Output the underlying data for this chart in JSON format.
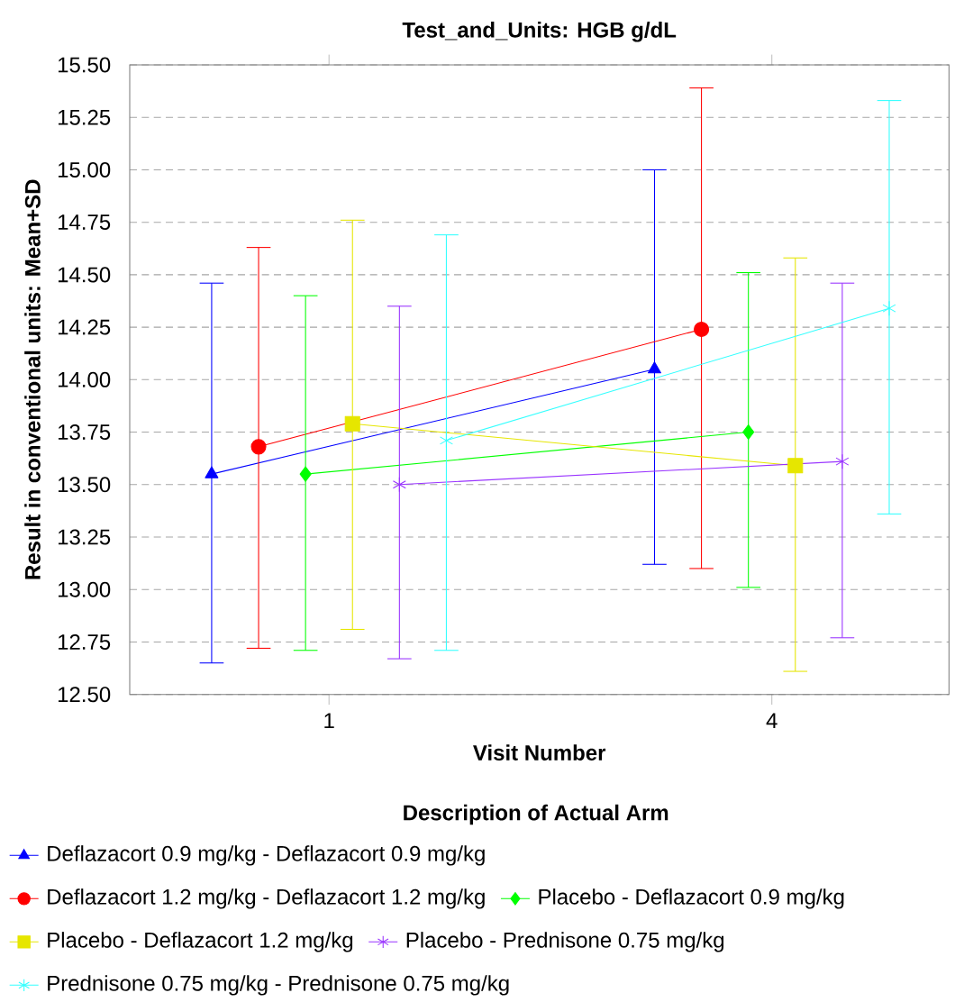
{
  "chart_data": {
    "type": "line",
    "title": "Test_and_Units: HGB g/dL",
    "xlabel": "Visit Number",
    "ylabel": "Result in conventional units: Mean+SD",
    "legend_title": "Description of Actual Arm",
    "categories": [
      "1",
      "4"
    ],
    "ylim": [
      12.5,
      15.5
    ],
    "yticks": [
      {
        "value": 12.5,
        "label": "12.50"
      },
      {
        "value": 12.75,
        "label": "12.75"
      },
      {
        "value": 13.0,
        "label": "13.00"
      },
      {
        "value": 13.25,
        "label": "13.25"
      },
      {
        "value": 13.5,
        "label": "13.50"
      },
      {
        "value": 13.75,
        "label": "13.75"
      },
      {
        "value": 14.0,
        "label": "14.00"
      },
      {
        "value": 14.25,
        "label": "14.25"
      },
      {
        "value": 14.5,
        "label": "14.50"
      },
      {
        "value": 14.75,
        "label": "14.75"
      },
      {
        "value": 15.0,
        "label": "15.00"
      },
      {
        "value": 15.25,
        "label": "15.25"
      },
      {
        "value": 15.5,
        "label": "15.50"
      }
    ],
    "grid": "y",
    "legend": "bottom",
    "line_style": "solid",
    "series": [
      {
        "name": "Deflazacort 0.9 mg/kg - Deflazacort 0.9 mg/kg",
        "color": "#0000ff",
        "marker": "triangle",
        "values": [
          13.55,
          14.05
        ],
        "errors": [
          [
            12.65,
            14.46
          ],
          [
            13.12,
            15.0
          ]
        ]
      },
      {
        "name": "Deflazacort 1.2 mg/kg - Deflazacort 1.2 mg/kg",
        "color": "#ff0000",
        "marker": "circle",
        "values": [
          13.68,
          14.24
        ],
        "errors": [
          [
            12.72,
            14.63
          ],
          [
            13.1,
            15.39
          ]
        ]
      },
      {
        "name": "Placebo - Deflazacort 0.9 mg/kg",
        "color": "#00ff00",
        "marker": "diamond",
        "values": [
          13.55,
          13.75
        ],
        "errors": [
          [
            12.71,
            14.4
          ],
          [
            13.01,
            14.51
          ]
        ]
      },
      {
        "name": "Placebo - Deflazacort 1.2 mg/kg",
        "color": "#e6e600",
        "marker": "square",
        "values": [
          13.79,
          13.59
        ],
        "errors": [
          [
            12.81,
            14.76
          ],
          [
            12.61,
            14.58
          ]
        ]
      },
      {
        "name": "Placebo - Prednisone 0.75 mg/kg",
        "color": "#9933ff",
        "marker": "cross",
        "values": [
          13.5,
          13.61
        ],
        "errors": [
          [
            12.67,
            14.35
          ],
          [
            12.77,
            14.46
          ]
        ]
      },
      {
        "name": "Prednisone 0.75 mg/kg - Prednisone 0.75 mg/kg",
        "color": "#33ffff",
        "marker": "cross",
        "values": [
          13.71,
          14.34
        ],
        "errors": [
          [
            12.71,
            14.69
          ],
          [
            13.36,
            15.33
          ]
        ]
      }
    ]
  }
}
